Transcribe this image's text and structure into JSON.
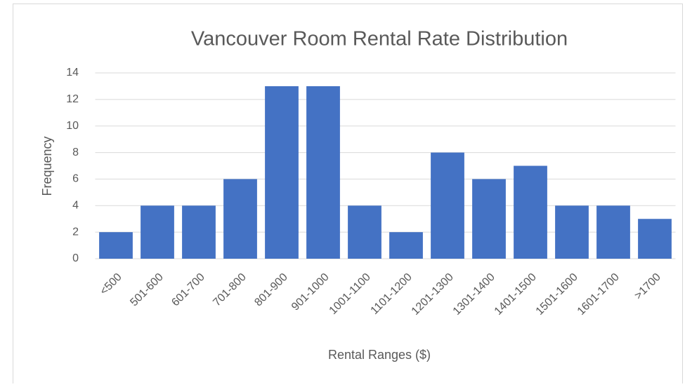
{
  "chart_data": {
    "type": "bar",
    "title": "Vancouver Room Rental Rate Distribution",
    "x_label": "Rental Ranges ($)",
    "y_label": "Frequency",
    "categories": [
      "<500",
      "501-600",
      "601-700",
      "701-800",
      "801-900",
      "901-1000",
      "1001-1100",
      "1101-1200",
      "1201-1300",
      "1301-1400",
      "1401-1500",
      "1501-1600",
      "1601-1700",
      ">1700"
    ],
    "values": [
      2,
      4,
      4,
      6,
      13,
      13,
      4,
      2,
      8,
      6,
      7,
      4,
      4,
      3
    ],
    "color": "#4472c4",
    "ylim": [
      0,
      14
    ],
    "yticks": [
      0,
      2,
      4,
      6,
      8,
      10,
      12,
      14
    ],
    "grid": true
  }
}
